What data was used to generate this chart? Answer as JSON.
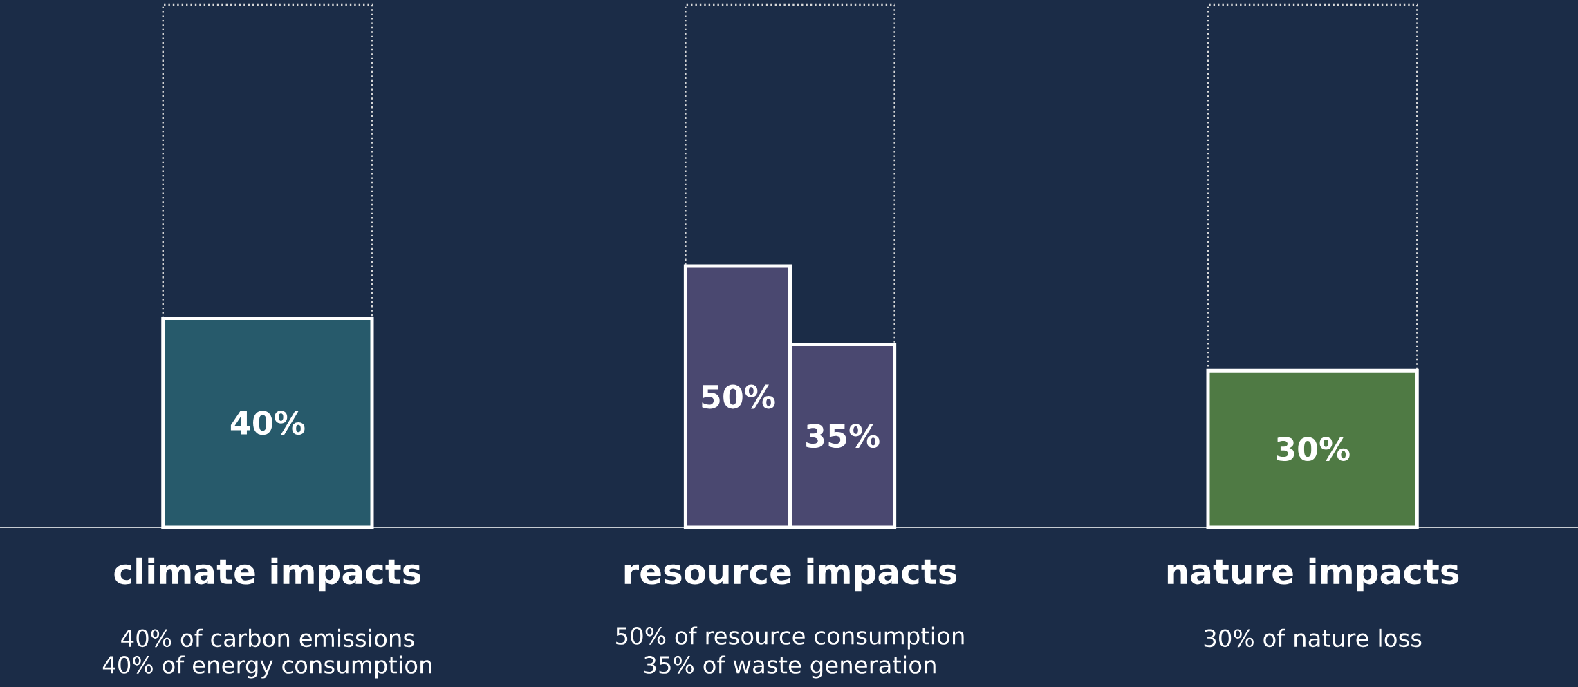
{
  "chart_data": {
    "type": "bar",
    "categories": [
      "climate impacts",
      "resource impacts",
      "nature impacts"
    ],
    "series": [
      {
        "type": "bar",
        "line_style": "dotted",
        "color": "#d9d9d9",
        "values": [
          100,
          100,
          100
        ]
      },
      {
        "colors": [
          "#275a6b",
          "#4a4870",
          "#4f7a44"
        ],
        "values": [
          40,
          50,
          30
        ],
        "value_labels": [
          "40%",
          "50%",
          "30%"
        ]
      },
      {
        "color": "#4a4870",
        "values": [
          null,
          35,
          null
        ],
        "value_labels": [
          null,
          "35%",
          null
        ]
      }
    ],
    "ylim": [
      0,
      100
    ],
    "tick_labels": "x",
    "annotations": [
      "40% of carbon emissions",
      "40% of energy consumption",
      "50% of resource consumption",
      "35% of waste generation",
      "30% of nature loss"
    ]
  }
}
